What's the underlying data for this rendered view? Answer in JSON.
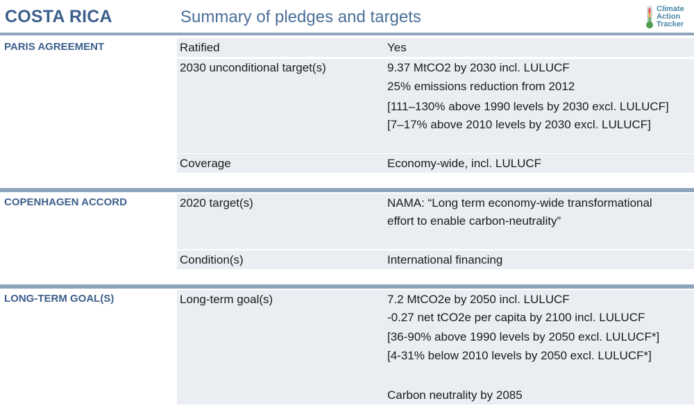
{
  "header": {
    "country": "COSTA RICA",
    "subtitle": "Summary of pledges and targets",
    "logo": {
      "lines": [
        "Climate",
        "Action",
        "Tracker"
      ],
      "icon": "thermometer-icon"
    }
  },
  "sections": [
    {
      "title": "PARIS AGREEMENT",
      "rows": [
        {
          "label": "Ratified",
          "values": [
            "Yes"
          ]
        },
        {
          "label": "2030 unconditional target(s)",
          "values": [
            "9.37 MtCO2 by 2030 incl. LULUCF",
            "25% emissions reduction from 2012",
            "[111–130% above 1990 levels by 2030 excl. LULUCF]",
            "[7–17% above 2010 levels by 2030 excl. LULUCF]"
          ]
        },
        {
          "label": "Coverage",
          "values": [
            "Economy-wide, incl. LULUCF"
          ]
        }
      ]
    },
    {
      "title": "COPENHAGEN ACCORD",
      "rows": [
        {
          "label": "2020 target(s)",
          "values": [
            "NAMA: “Long term economy-wide transformational",
            "effort to enable carbon-neutrality”"
          ]
        },
        {
          "label": "Condition(s)",
          "values": [
            "International financing"
          ]
        }
      ]
    },
    {
      "title": "LONG-TERM GOAL(S)",
      "rows": [
        {
          "label": "Long-term goal(s)",
          "values": [
            "7.2 MtCO2e by 2050 incl. LULUCF",
            "-0.27 net tCO2e per capita by 2100 incl. LULUCF",
            "[36-90% above 1990 levels by 2050 excl. LULUCF*]",
            "[4-31% below 2010 levels by 2050 excl. LULUCF*]",
            "Carbon neutrality by 2085"
          ]
        }
      ]
    }
  ],
  "colors": {
    "title": "#3d5f8c",
    "subtitle": "#4a6f99",
    "separator": "#8ea4bc",
    "row_background": "#eaeef2",
    "logo_text": "#4b86a8"
  }
}
